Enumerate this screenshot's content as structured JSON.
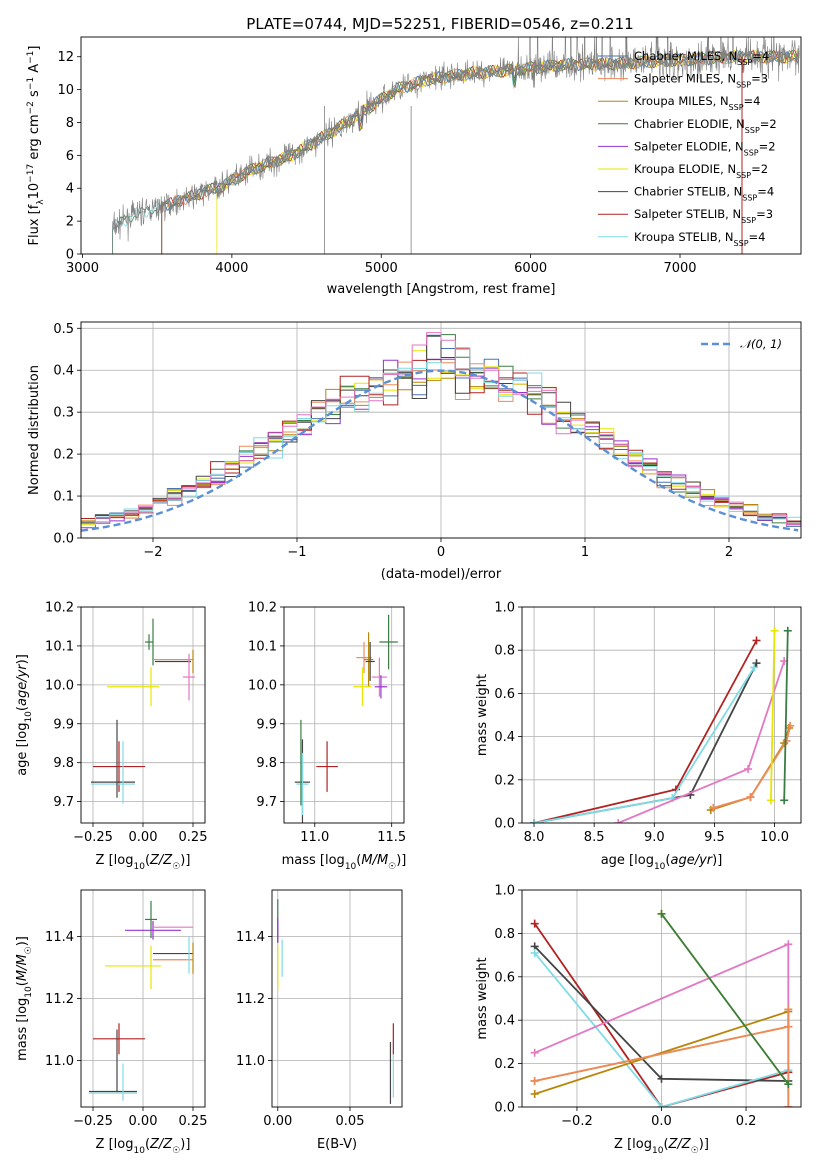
{
  "title": "PLATE=0744, MJD=52251, FIBERID=0546, z=0.211",
  "colors": {
    "chabrier_miles": "#4c72b0",
    "salpeter_miles": "#ef8a5a",
    "kroupa_miles": "#b8860b",
    "chabrier_elodie": "#3a7d44",
    "salpeter_elodie": "#9933cc",
    "kroupa_elodie": "#e6e600",
    "chabrier_stelib": "#444444",
    "salpeter_stelib": "#b22222",
    "kroupa_stelib": "#7fdbe6",
    "pink": "#e377c2",
    "orange": "#d2691e",
    "gauss": "#5b8fd6",
    "data": "#808080"
  },
  "chart_data": [
    {
      "id": "spectrum",
      "type": "line",
      "title": "PLATE=0744, MJD=52251, FIBERID=0546, z=0.211",
      "xlabel": "wavelength [Angstrom, rest frame]",
      "ylabel": "Flux [fλ10⁻¹⁷ erg cm⁻² s⁻¹ A⁻¹]",
      "xlim": [
        2990,
        7810
      ],
      "ylim": [
        0,
        13.2
      ],
      "xticks": [
        3000,
        4000,
        5000,
        6000,
        7000
      ],
      "yticks": [
        0,
        2,
        4,
        6,
        8,
        10,
        12
      ],
      "x": [
        3200,
        3350,
        3500,
        3700,
        3950,
        4150,
        4400,
        4700,
        4900,
        5100,
        5300,
        5600,
        5900,
        6200,
        6600,
        7000,
        7400
      ],
      "flux": [
        1.6,
        2.4,
        2.8,
        3.4,
        4.2,
        5.2,
        6.0,
        7.6,
        8.8,
        10.0,
        10.6,
        11.0,
        11.2,
        11.5,
        11.6,
        11.8,
        12.0
      ],
      "legend": [
        {
          "name": "Chabrier MILES, N",
          "sub": "SSP",
          "tail": "=4",
          "color": "chabrier_miles"
        },
        {
          "name": "Salpeter MILES, N",
          "sub": "SSP",
          "tail": "=3",
          "color": "salpeter_miles"
        },
        {
          "name": "Kroupa MILES, N",
          "sub": "SSP",
          "tail": "=4",
          "color": "kroupa_miles"
        },
        {
          "name": "Chabrier ELODIE, N",
          "sub": "SSP",
          "tail": "=2",
          "color": "chabrier_elodie"
        },
        {
          "name": "Salpeter ELODIE, N",
          "sub": "SSP",
          "tail": "=2",
          "color": "salpeter_elodie"
        },
        {
          "name": "Kroupa ELODIE, N",
          "sub": "SSP",
          "tail": "=2",
          "color": "kroupa_elodie"
        },
        {
          "name": "Chabrier STELIB, N",
          "sub": "SSP",
          "tail": "=4",
          "color": "chabrier_stelib"
        },
        {
          "name": "Salpeter STELIB, N",
          "sub": "SSP",
          "tail": "=3",
          "color": "salpeter_stelib"
        },
        {
          "name": "Kroupa STELIB, N",
          "sub": "SSP",
          "tail": "=4",
          "color": "kroupa_stelib"
        }
      ]
    },
    {
      "id": "residuals",
      "type": "histogram",
      "xlabel": "(data-model)/error",
      "ylabel": "Normed distribution",
      "xlim": [
        -2.5,
        2.5
      ],
      "ylim": [
        0,
        0.515
      ],
      "xticks": [
        -2,
        -1,
        0,
        1,
        2
      ],
      "yticks": [
        0.0,
        0.1,
        0.2,
        0.3,
        0.4,
        0.5
      ],
      "legend": "𝒩(0, 1)",
      "grid": true
    },
    {
      "id": "age_vs_Z",
      "type": "errorbar",
      "xlabel": "Z [log₁₀(Z/Z☉)]",
      "ylabel": "age  [log₁₀(age/yr)]",
      "xlim": [
        -0.31,
        0.31
      ],
      "ylim": [
        9.645,
        10.2
      ],
      "xticks": [
        -0.25,
        0.0,
        0.25
      ],
      "yticks": [
        9.7,
        9.8,
        9.9,
        10.0,
        10.1,
        10.2
      ],
      "points": [
        {
          "x": 0.03,
          "y": 10.11,
          "xe": 0.02,
          "ye": 0.02,
          "color": "chabrier_elodie"
        },
        {
          "x": 0.05,
          "y": 10.11,
          "xe": 0.0,
          "ye": 0.06,
          "color": "chabrier_elodie"
        },
        {
          "x": 0.15,
          "y": 10.065,
          "xe": 0.1,
          "ye": 0.0,
          "color": "salpeter_miles"
        },
        {
          "x": 0.15,
          "y": 10.06,
          "xe": 0.09,
          "ye": 0.0,
          "color": "chabrier_stelib"
        },
        {
          "x": 0.23,
          "y": 10.02,
          "xe": 0.03,
          "ye": 0.06,
          "color": "pink"
        },
        {
          "x": 0.25,
          "y": 10.06,
          "xe": 0.0,
          "ye": 0.03,
          "color": "kroupa_miles"
        },
        {
          "x": -0.05,
          "y": 9.995,
          "xe": 0.13,
          "ye": 0.0,
          "color": "kroupa_elodie"
        },
        {
          "x": 0.04,
          "y": 9.995,
          "xe": 0.0,
          "ye": 0.05,
          "color": "kroupa_elodie"
        },
        {
          "x": -0.12,
          "y": 9.79,
          "xe": 0.13,
          "ye": 0.065,
          "color": "salpeter_stelib"
        },
        {
          "x": -0.15,
          "y": 9.75,
          "xe": 0.11,
          "ye": 0.0,
          "color": "chabrier_stelib"
        },
        {
          "x": -0.15,
          "y": 9.745,
          "xe": 0.11,
          "ye": 0.0,
          "color": "kroupa_stelib"
        },
        {
          "x": -0.1,
          "y": 9.775,
          "xe": 0.0,
          "ye": 0.08,
          "color": "kroupa_stelib"
        },
        {
          "x": -0.13,
          "y": 9.81,
          "xe": 0.0,
          "ye": 0.1,
          "color": "chabrier_stelib"
        }
      ]
    },
    {
      "id": "age_vs_mass",
      "type": "errorbar",
      "xlabel": "mass [log₁₀(M/M☉)]",
      "ylabel": "",
      "xlim": [
        10.8,
        11.58
      ],
      "ylim": [
        9.645,
        10.2
      ],
      "xticks": [
        11.0,
        11.5
      ],
      "yticks": [
        9.7,
        9.8,
        9.9,
        10.0,
        10.1,
        10.2
      ],
      "points": [
        {
          "x": 11.48,
          "y": 10.11,
          "xe": 0.06,
          "ye": 0.07,
          "color": "chabrier_elodie"
        },
        {
          "x": 11.32,
          "y": 10.07,
          "xe": 0.05,
          "ye": 0.04,
          "color": "salpeter_miles"
        },
        {
          "x": 11.35,
          "y": 10.065,
          "xe": 0.03,
          "ye": 0.07,
          "color": "kroupa_miles"
        },
        {
          "x": 11.36,
          "y": 10.06,
          "xe": 0.03,
          "ye": 0.05,
          "color": "chabrier_stelib"
        },
        {
          "x": 11.42,
          "y": 10.02,
          "xe": 0.05,
          "ye": 0.05,
          "color": "pink"
        },
        {
          "x": 11.43,
          "y": 9.995,
          "xe": 0.04,
          "ye": 0.03,
          "color": "salpeter_elodie"
        },
        {
          "x": 11.31,
          "y": 9.995,
          "xe": 0.06,
          "ye": 0.05,
          "color": "kroupa_elodie"
        },
        {
          "x": 11.08,
          "y": 9.79,
          "xe": 0.07,
          "ye": 0.065,
          "color": "salpeter_stelib"
        },
        {
          "x": 10.92,
          "y": 9.75,
          "xe": 0.05,
          "ye": 0.11,
          "color": "chabrier_stelib"
        },
        {
          "x": 10.92,
          "y": 9.745,
          "xe": 0.04,
          "ye": 0.08,
          "color": "kroupa_stelib"
        },
        {
          "x": 10.91,
          "y": 9.8,
          "xe": 0.0,
          "ye": 0.11,
          "color": "chabrier_elodie"
        }
      ]
    },
    {
      "id": "weight_vs_age",
      "type": "line",
      "xlabel": "age  [log₁₀(age/yr)]",
      "ylabel": "mass weight",
      "xlim": [
        7.9,
        10.22
      ],
      "ylim": [
        0,
        1.0
      ],
      "xticks": [
        8.0,
        8.5,
        9.0,
        9.5,
        10.0
      ],
      "yticks": [
        0.0,
        0.2,
        0.4,
        0.6,
        0.8,
        1.0
      ],
      "series": [
        {
          "color": "salpeter_stelib",
          "x": [
            8.0,
            9.18,
            9.85
          ],
          "y": [
            0.0,
            0.155,
            0.845
          ]
        },
        {
          "color": "chabrier_stelib",
          "x": [
            8.0,
            9.3,
            9.85
          ],
          "y": [
            0.0,
            0.13,
            0.74
          ]
        },
        {
          "color": "kroupa_stelib",
          "x": [
            8.0,
            9.15,
            9.83
          ],
          "y": [
            0.0,
            0.115,
            0.72
          ]
        },
        {
          "color": "pink",
          "x": [
            8.7,
            9.78,
            10.08
          ],
          "y": [
            0.0,
            0.25,
            0.75
          ]
        },
        {
          "color": "kroupa_miles",
          "x": [
            9.47,
            9.8,
            10.08,
            10.12
          ],
          "y": [
            0.06,
            0.12,
            0.37,
            0.44
          ]
        },
        {
          "color": "salpeter_miles",
          "x": [
            9.49,
            9.8,
            10.1,
            10.13
          ],
          "y": [
            0.07,
            0.12,
            0.38,
            0.45
          ]
        },
        {
          "color": "chabrier_elodie",
          "x": [
            10.08,
            10.11
          ],
          "y": [
            0.105,
            0.89
          ]
        },
        {
          "color": "kroupa_elodie",
          "x": [
            9.97,
            10.0
          ],
          "y": [
            0.105,
            0.89
          ]
        }
      ]
    },
    {
      "id": "mass_vs_Z",
      "type": "errorbar",
      "xlabel": "Z [log₁₀(Z/Z☉)]",
      "ylabel": "mass [log₁₀(M/M☉)]",
      "xlim": [
        -0.31,
        0.31
      ],
      "ylim": [
        10.85,
        11.55
      ],
      "xticks": [
        -0.25,
        0.0,
        0.25
      ],
      "yticks": [
        11.0,
        11.2,
        11.4
      ],
      "points": [
        {
          "x": 0.04,
          "y": 11.455,
          "xe": 0.03,
          "ye": 0.06,
          "color": "chabrier_elodie"
        },
        {
          "x": 0.05,
          "y": 11.42,
          "xe": 0.14,
          "ye": 0.03,
          "color": "salpeter_elodie"
        },
        {
          "x": 0.15,
          "y": 11.43,
          "xe": 0.1,
          "ye": 0.0,
          "color": "pink"
        },
        {
          "x": 0.15,
          "y": 11.345,
          "xe": 0.1,
          "ye": 0.0,
          "color": "chabrier_stelib"
        },
        {
          "x": 0.15,
          "y": 11.325,
          "xe": 0.1,
          "ye": 0.0,
          "color": "salpeter_miles"
        },
        {
          "x": 0.23,
          "y": 11.34,
          "xe": 0.0,
          "ye": 0.06,
          "color": "kroupa_stelib"
        },
        {
          "x": 0.25,
          "y": 11.33,
          "xe": 0.0,
          "ye": 0.05,
          "color": "kroupa_miles"
        },
        {
          "x": -0.05,
          "y": 11.305,
          "xe": 0.14,
          "ye": 0.0,
          "color": "kroupa_elodie"
        },
        {
          "x": 0.04,
          "y": 11.3,
          "xe": 0.0,
          "ye": 0.07,
          "color": "kroupa_elodie"
        },
        {
          "x": -0.12,
          "y": 11.07,
          "xe": 0.13,
          "ye": 0.05,
          "color": "salpeter_stelib"
        },
        {
          "x": -0.15,
          "y": 10.9,
          "xe": 0.12,
          "ye": 0.0,
          "color": "chabrier_stelib"
        },
        {
          "x": -0.15,
          "y": 10.895,
          "xe": 0.12,
          "ye": 0.0,
          "color": "kroupa_stelib"
        },
        {
          "x": -0.1,
          "y": 10.93,
          "xe": 0.0,
          "ye": 0.06,
          "color": "kroupa_stelib"
        },
        {
          "x": -0.13,
          "y": 11.0,
          "xe": 0.0,
          "ye": 0.1,
          "color": "chabrier_stelib"
        }
      ]
    },
    {
      "id": "mass_vs_EBV",
      "type": "errorbar",
      "xlabel": "E(B-V)",
      "ylabel": "",
      "xlim": [
        -0.004,
        0.086
      ],
      "ylim": [
        10.85,
        11.55
      ],
      "xticks": [
        0.0,
        0.05
      ],
      "yticks": [
        11.0,
        11.2,
        11.4
      ],
      "points": [
        {
          "x": 0.0,
          "y": 11.45,
          "xe": 0.0,
          "ye": 0.07,
          "color": "chabrier_elodie"
        },
        {
          "x": 0.0,
          "y": 11.42,
          "xe": 0.0,
          "ye": 0.04,
          "color": "salpeter_elodie"
        },
        {
          "x": 0.0,
          "y": 11.3,
          "xe": 0.0,
          "ye": 0.07,
          "color": "kroupa_elodie"
        },
        {
          "x": 0.003,
          "y": 11.33,
          "xe": 0.0,
          "ye": 0.06,
          "color": "kroupa_stelib"
        },
        {
          "x": 0.078,
          "y": 10.96,
          "xe": 0.0,
          "ye": 0.1,
          "color": "chabrier_stelib"
        },
        {
          "x": 0.08,
          "y": 11.07,
          "xe": 0.0,
          "ye": 0.05,
          "color": "salpeter_stelib"
        },
        {
          "x": 0.08,
          "y": 10.95,
          "xe": 0.0,
          "ye": 0.07,
          "color": "kroupa_stelib"
        }
      ]
    },
    {
      "id": "weight_vs_Z",
      "type": "line",
      "xlabel": "Z [log₁₀(Z/Z☉)]",
      "ylabel": "mass weight",
      "xlim": [
        -0.33,
        0.33
      ],
      "ylim": [
        0,
        1.0
      ],
      "xticks": [
        -0.2,
        0.0,
        0.2
      ],
      "yticks": [
        0.0,
        0.2,
        0.4,
        0.6,
        0.8,
        1.0
      ],
      "series": [
        {
          "color": "salpeter_stelib",
          "x": [
            -0.3,
            0.0,
            0.3
          ],
          "y": [
            0.845,
            0.0,
            0.16
          ]
        },
        {
          "color": "chabrier_stelib",
          "x": [
            -0.3,
            0.0,
            0.3
          ],
          "y": [
            0.74,
            0.13,
            0.12
          ]
        },
        {
          "color": "kroupa_stelib",
          "x": [
            -0.3,
            0.0,
            0.3
          ],
          "y": [
            0.71,
            0.0,
            0.17
          ]
        },
        {
          "color": "pink",
          "x": [
            -0.3,
            0.3,
            0.3
          ],
          "y": [
            0.25,
            0.75,
            0.0
          ]
        },
        {
          "color": "kroupa_miles",
          "x": [
            -0.3,
            0.3,
            0.3,
            -0.3
          ],
          "y": [
            0.06,
            0.44,
            0.37,
            0.12
          ]
        },
        {
          "color": "salpeter_miles",
          "x": [
            -0.3,
            0.3,
            0.3,
            0.3
          ],
          "y": [
            0.12,
            0.37,
            0.45,
            0.0
          ]
        },
        {
          "color": "kroupa_elodie",
          "x": [
            0.0,
            0.3
          ],
          "y": [
            0.89,
            0.105
          ]
        },
        {
          "color": "chabrier_elodie",
          "x": [
            0.0,
            0.3
          ],
          "y": [
            0.89,
            0.105
          ]
        }
      ]
    }
  ]
}
